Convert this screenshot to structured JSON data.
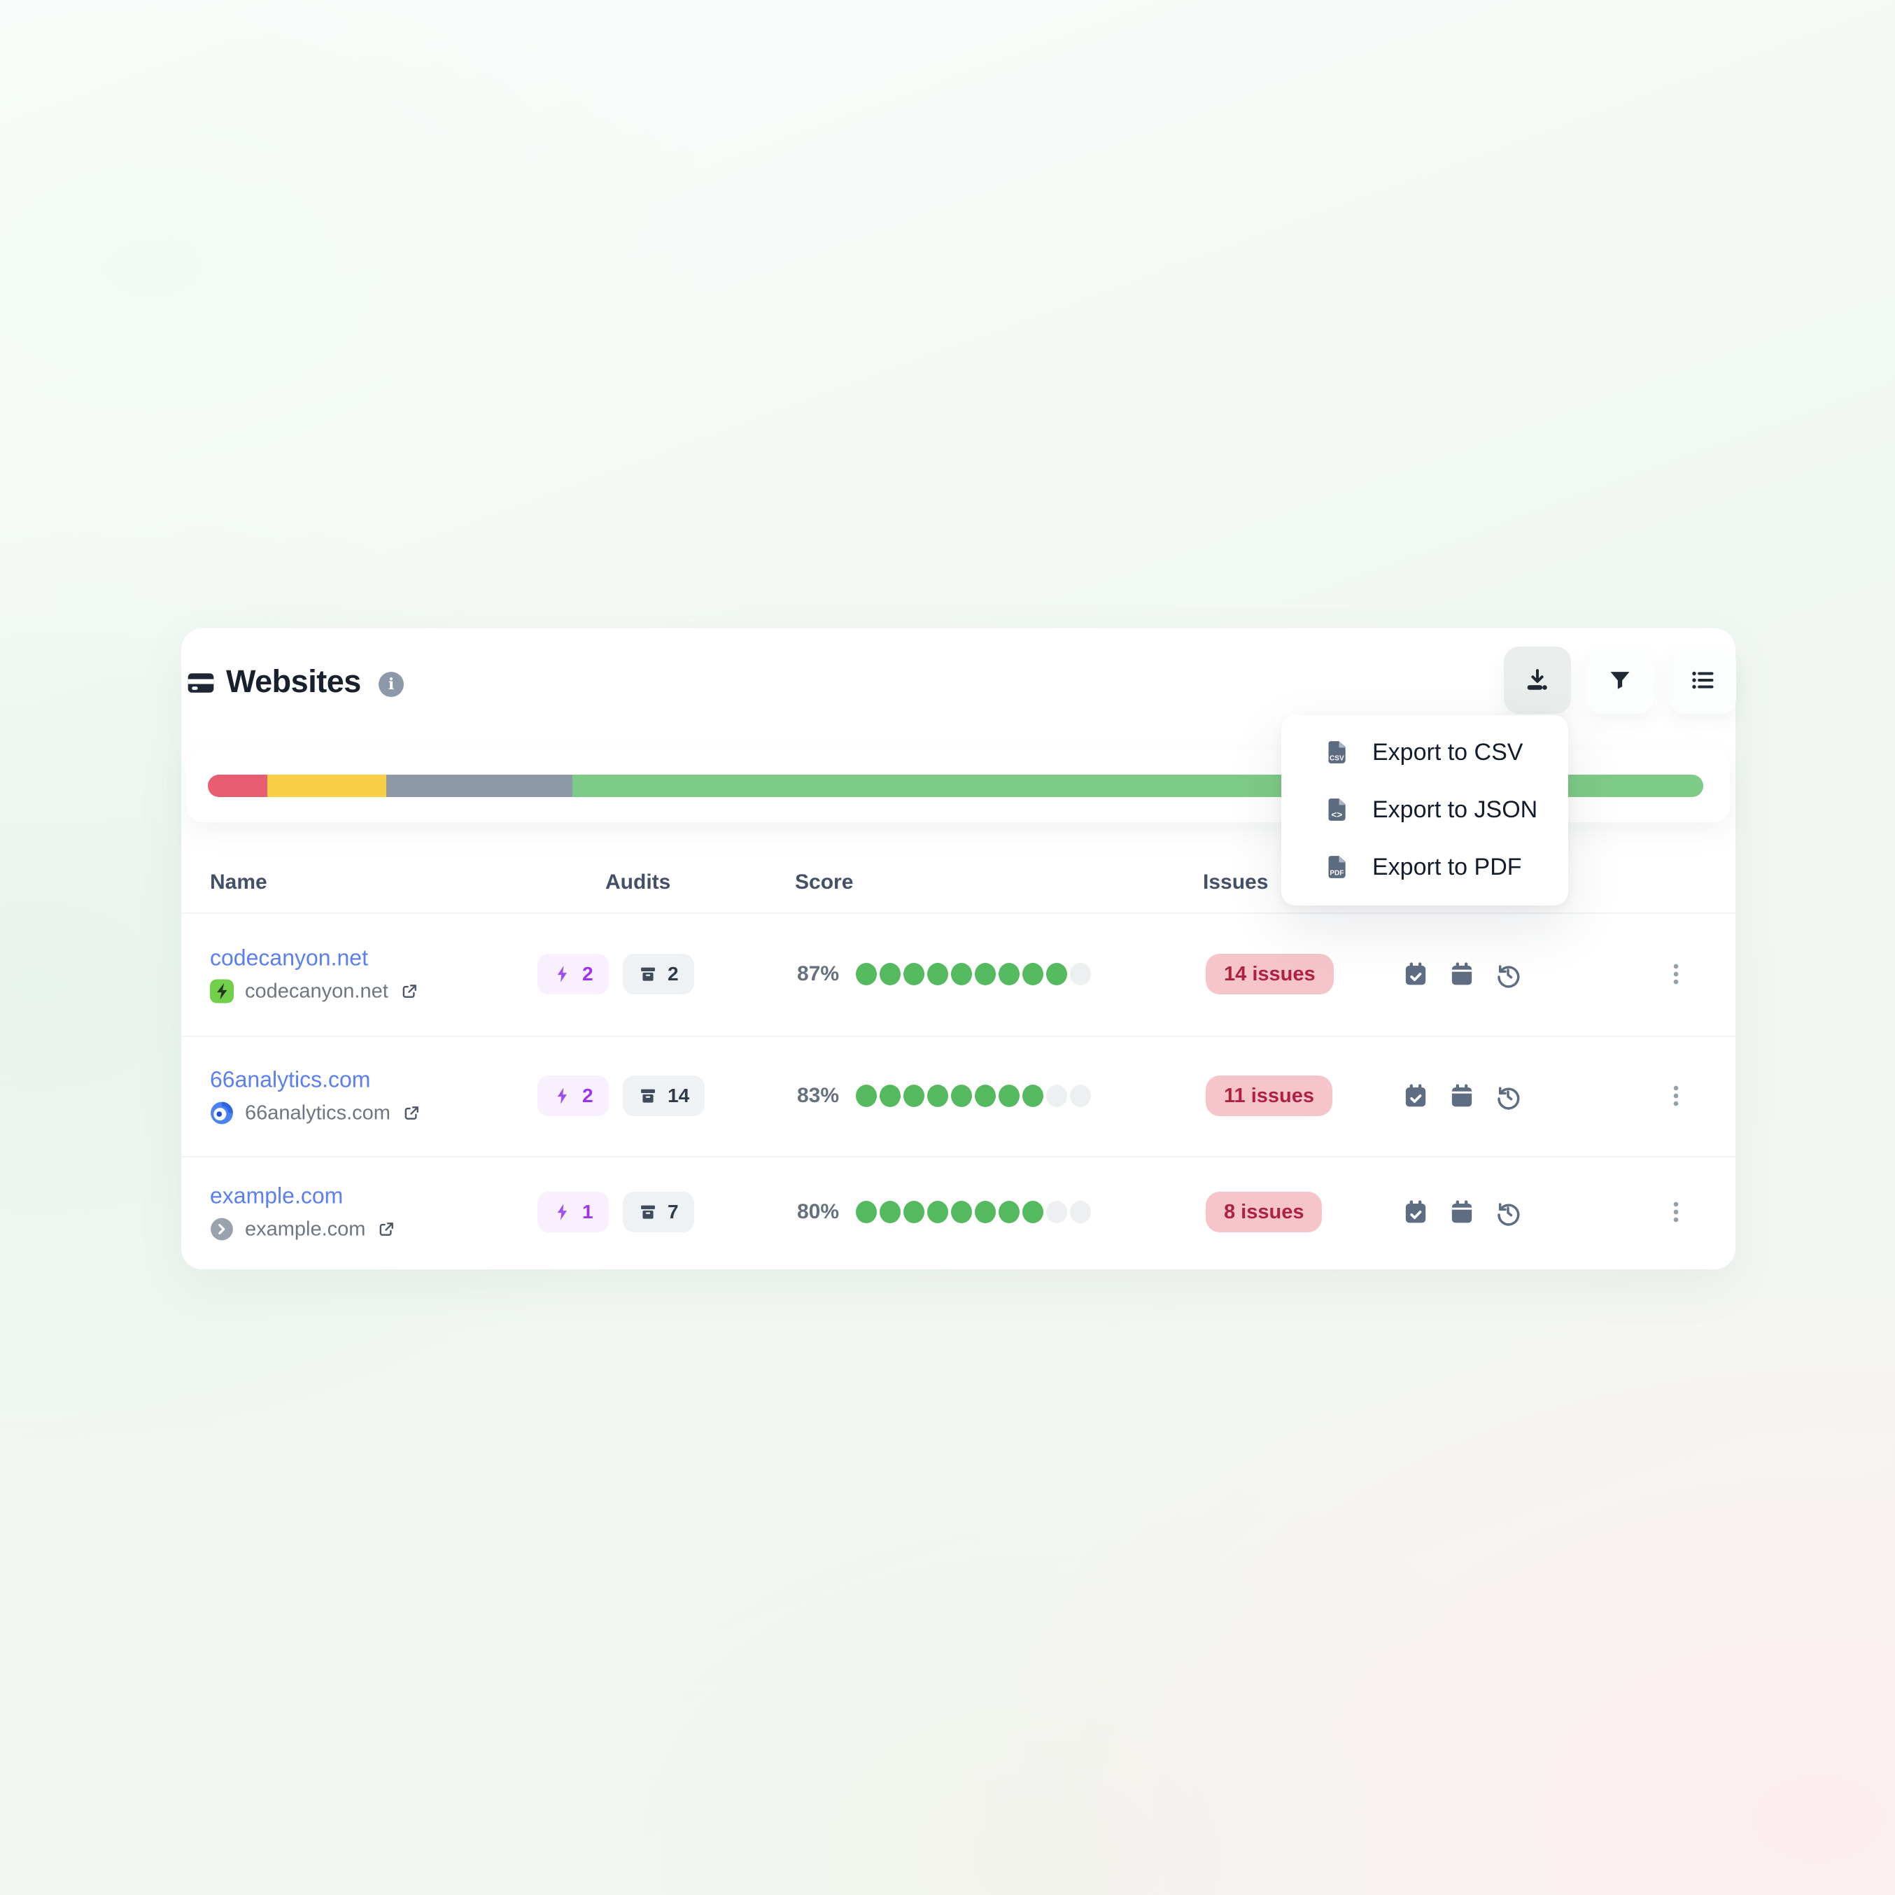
{
  "header": {
    "title": "Websites",
    "title_icon": "websites-card-icon",
    "info_icon": "info-icon"
  },
  "toolbar": {
    "buttons": [
      {
        "name": "download",
        "icon": "download-icon",
        "active": true
      },
      {
        "name": "filter",
        "icon": "funnel-icon",
        "active": false
      },
      {
        "name": "view-list",
        "icon": "bullet-list-icon",
        "active": false
      }
    ]
  },
  "export_menu": {
    "items": [
      {
        "label": "Export to CSV",
        "icon": "file-csv-icon"
      },
      {
        "label": "Export to JSON",
        "icon": "file-json-icon"
      },
      {
        "label": "Export to PDF",
        "icon": "file-pdf-icon"
      }
    ]
  },
  "summary_bar": {
    "segments": [
      {
        "name": "red",
        "color": "#e85d72",
        "percent": 3.97
      },
      {
        "name": "yellow",
        "color": "#f7ce46",
        "percent": 7.95
      },
      {
        "name": "gray",
        "color": "#8e99a8",
        "percent": 12.45
      },
      {
        "name": "green",
        "color": "#7ecb87",
        "percent": 75.63
      }
    ]
  },
  "table": {
    "columns": [
      "Name",
      "Audits",
      "Score",
      "Issues"
    ],
    "rows": [
      {
        "name": "codecanyon.net",
        "domain": "codecanyon.net",
        "favicon": "codecanyon-favicon",
        "audits_quick": "2",
        "audits_archived": "2",
        "score_percent": "87%",
        "dots_total": 10,
        "dots_filled": 9,
        "issues": "14 issues"
      },
      {
        "name": "66analytics.com",
        "domain": "66analytics.com",
        "favicon": "66analytics-favicon",
        "audits_quick": "2",
        "audits_archived": "14",
        "score_percent": "83%",
        "dots_total": 10,
        "dots_filled": 8,
        "issues": "11 issues"
      },
      {
        "name": "example.com",
        "domain": "example.com",
        "favicon": "example-favicon",
        "audits_quick": "1",
        "audits_archived": "7",
        "score_percent": "80%",
        "dots_total": 10,
        "dots_filled": 8,
        "issues": "8 issues"
      }
    ]
  },
  "colors": {
    "link": "#5b7ff2",
    "score_dot_filled": "#54b95f",
    "score_dot_empty": "#edf0f1",
    "issues_badge_bg": "#f6c5cc",
    "issues_badge_text": "#ae2140",
    "quick_badge_bg": "#f8f0fc",
    "quick_accent": "#9d33ee",
    "archive_badge_bg": "#eef2f5"
  }
}
